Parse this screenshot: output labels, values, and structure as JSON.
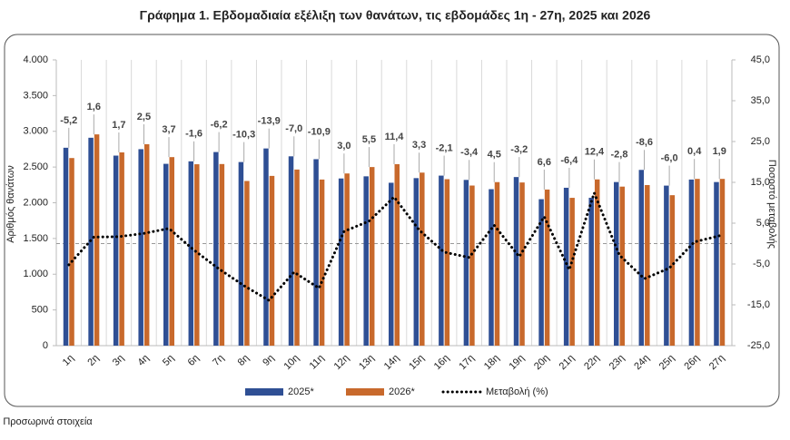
{
  "chart_data": {
    "type": "bar",
    "title": "Γράφημα 1.  Εβδομαδιαία εξέλιξη των θανάτων, τις εβδομάδες 1η - 27η, 2025 και 2026",
    "ylabel": "Αριθμός θανάτων",
    "y2label": "Ποσοστό μεταβολής",
    "footnote": "* Προσωρινά στοιχεία",
    "categories": [
      "1η",
      "2η",
      "3η",
      "4η",
      "5η",
      "6η",
      "7η",
      "8η",
      "9η",
      "10η",
      "11η",
      "12η",
      "13η",
      "14η",
      "15η",
      "16η",
      "17η",
      "18η",
      "19η",
      "20η",
      "21η",
      "22η",
      "23η",
      "24η",
      "25η",
      "26η",
      "27η"
    ],
    "series": [
      {
        "name": "2025*",
        "color": "#2f4f94",
        "values": [
          2770,
          2910,
          2660,
          2750,
          2545,
          2580,
          2710,
          2570,
          2760,
          2650,
          2610,
          2340,
          2370,
          2280,
          2345,
          2380,
          2320,
          2190,
          2360,
          2050,
          2210,
          2070,
          2290,
          2460,
          2240,
          2325,
          2290
        ]
      },
      {
        "name": "2026*",
        "color": "#c8692c",
        "values": [
          2626,
          2957,
          2705,
          2819,
          2639,
          2539,
          2542,
          2305,
          2376,
          2465,
          2325,
          2410,
          2500,
          2540,
          2422,
          2330,
          2241,
          2289,
          2284,
          2185,
          2069,
          2327,
          2226,
          2248,
          2106,
          2334,
          2334
        ]
      },
      {
        "name": "Μεταβολή (%)",
        "color": "#000000",
        "axis": "y2",
        "type": "line",
        "values": [
          -5.2,
          1.6,
          1.7,
          2.5,
          3.7,
          -1.6,
          -6.2,
          -10.3,
          -13.9,
          -7.0,
          -10.9,
          3.0,
          5.5,
          11.4,
          3.3,
          -2.1,
          -3.4,
          4.5,
          -3.2,
          6.6,
          -6.4,
          12.4,
          -2.8,
          -8.6,
          -6.0,
          0.4,
          1.9
        ],
        "value_labels": [
          "-5,2",
          "1,6",
          "1,7",
          "2,5",
          "3,7",
          "-1,6",
          "-6,2",
          "-10,3",
          "-13,9",
          "-7,0",
          "-10,9",
          "3,0",
          "5,5",
          "11,4",
          "3,3",
          "-2,1",
          "-3,4",
          "4,5",
          "-3,2",
          "6,6",
          "-6,4",
          "12,4",
          "-2,8",
          "-8,6",
          "-6,0",
          "0,4",
          "1,9"
        ]
      }
    ],
    "ylim": [
      0,
      4000
    ],
    "yticks": [
      0,
      500,
      {
        "value": 1000,
        "label": "1.000"
      },
      {
        "value": 1500,
        "label": "1.500"
      },
      {
        "value": 2000,
        "label": "2.000"
      },
      {
        "value": 2500,
        "label": "2.500"
      },
      {
        "value": 3000,
        "label": "3.000"
      },
      {
        "value": 3500,
        "label": "3.500"
      },
      {
        "value": 4000,
        "label": "4.000"
      }
    ],
    "y2lim": [
      -25,
      45
    ],
    "y2ticks": [
      {
        "value": -25,
        "label": "-25,0"
      },
      {
        "value": -15,
        "label": "-15,0"
      },
      {
        "value": -5,
        "label": "-5,0"
      },
      {
        "value": 5,
        "label": "5,0"
      },
      {
        "value": 15,
        "label": "15,0"
      },
      {
        "value": 25,
        "label": "25,0"
      },
      {
        "value": 35,
        "label": "35,0"
      },
      {
        "value": 45,
        "label": "45,0"
      }
    ]
  }
}
